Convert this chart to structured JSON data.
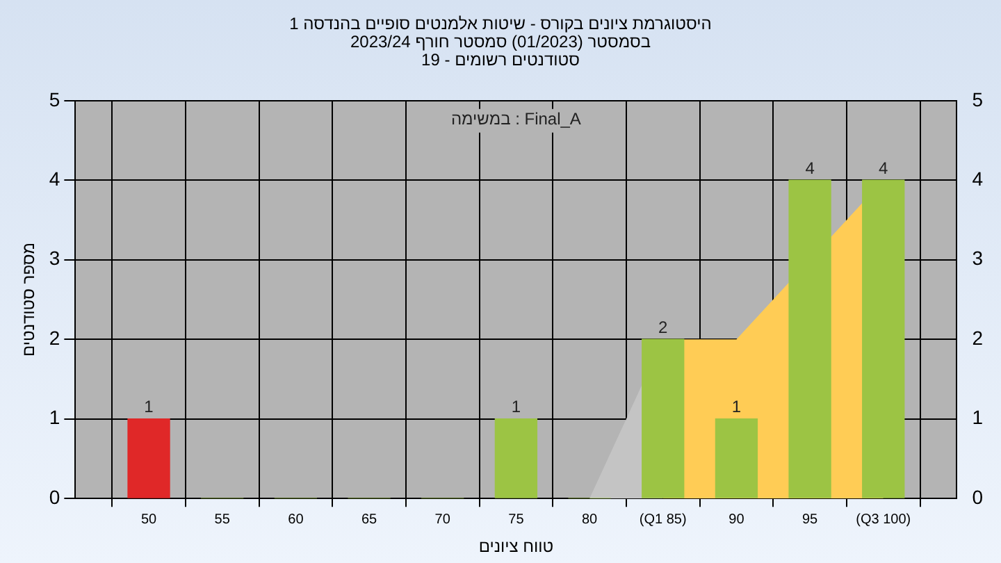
{
  "chart_data": {
    "type": "bar",
    "title": "היסטוגרמת ציונים בקורס - שיטות אלמנטים סופיים בהנדסה 1",
    "subtitle": "בסמסטר (01/2023) סמסטר חורף 2023/24\nסטודנטים רשומים - 19",
    "xlabel": "טווח ציונים",
    "ylabel": "מספר סטודנטים",
    "annotations": [
      "במשימה : Final_A"
    ],
    "x": [
      50,
      55,
      60,
      65,
      70,
      75,
      80,
      85,
      90,
      95,
      100
    ],
    "series": [
      {
        "type": "area",
        "color": "#c4c4c4",
        "x": [
          80,
          85
        ],
        "values": [
          0,
          2
        ]
      },
      {
        "type": "area",
        "color": "#ffcc55",
        "x": [
          85,
          90,
          100
        ],
        "values": [
          2,
          2,
          4
        ]
      },
      {
        "colors": [
          "#e02828",
          "#9cc444",
          "#9cc444",
          "#9cc444",
          "#9cc444",
          "#9cc444",
          "#9cc444",
          "#9cc444",
          "#9cc444",
          "#9cc444",
          "#9cc444"
        ],
        "values": [
          1,
          0,
          0,
          0,
          0,
          1,
          0,
          2,
          1,
          4,
          4
        ],
        "value_labels": [
          "1",
          null,
          null,
          null,
          null,
          "1",
          null,
          "2",
          "1",
          "4",
          "4"
        ]
      }
    ],
    "xlim": [
      45,
      105
    ],
    "xticks": [
      50,
      55,
      60,
      65,
      70,
      75,
      80,
      {
        "value": 85,
        "label": "(Q1 85)"
      },
      90,
      95,
      {
        "value": 100,
        "label": "(Q3 100)"
      }
    ],
    "ylim": [
      0,
      5
    ],
    "yticks": [
      0,
      1,
      2,
      3,
      4,
      5
    ],
    "y2lim": [
      0,
      5
    ],
    "y2ticks": [
      0,
      1,
      2,
      3,
      4,
      5
    ],
    "grid": true,
    "legend": false
  }
}
